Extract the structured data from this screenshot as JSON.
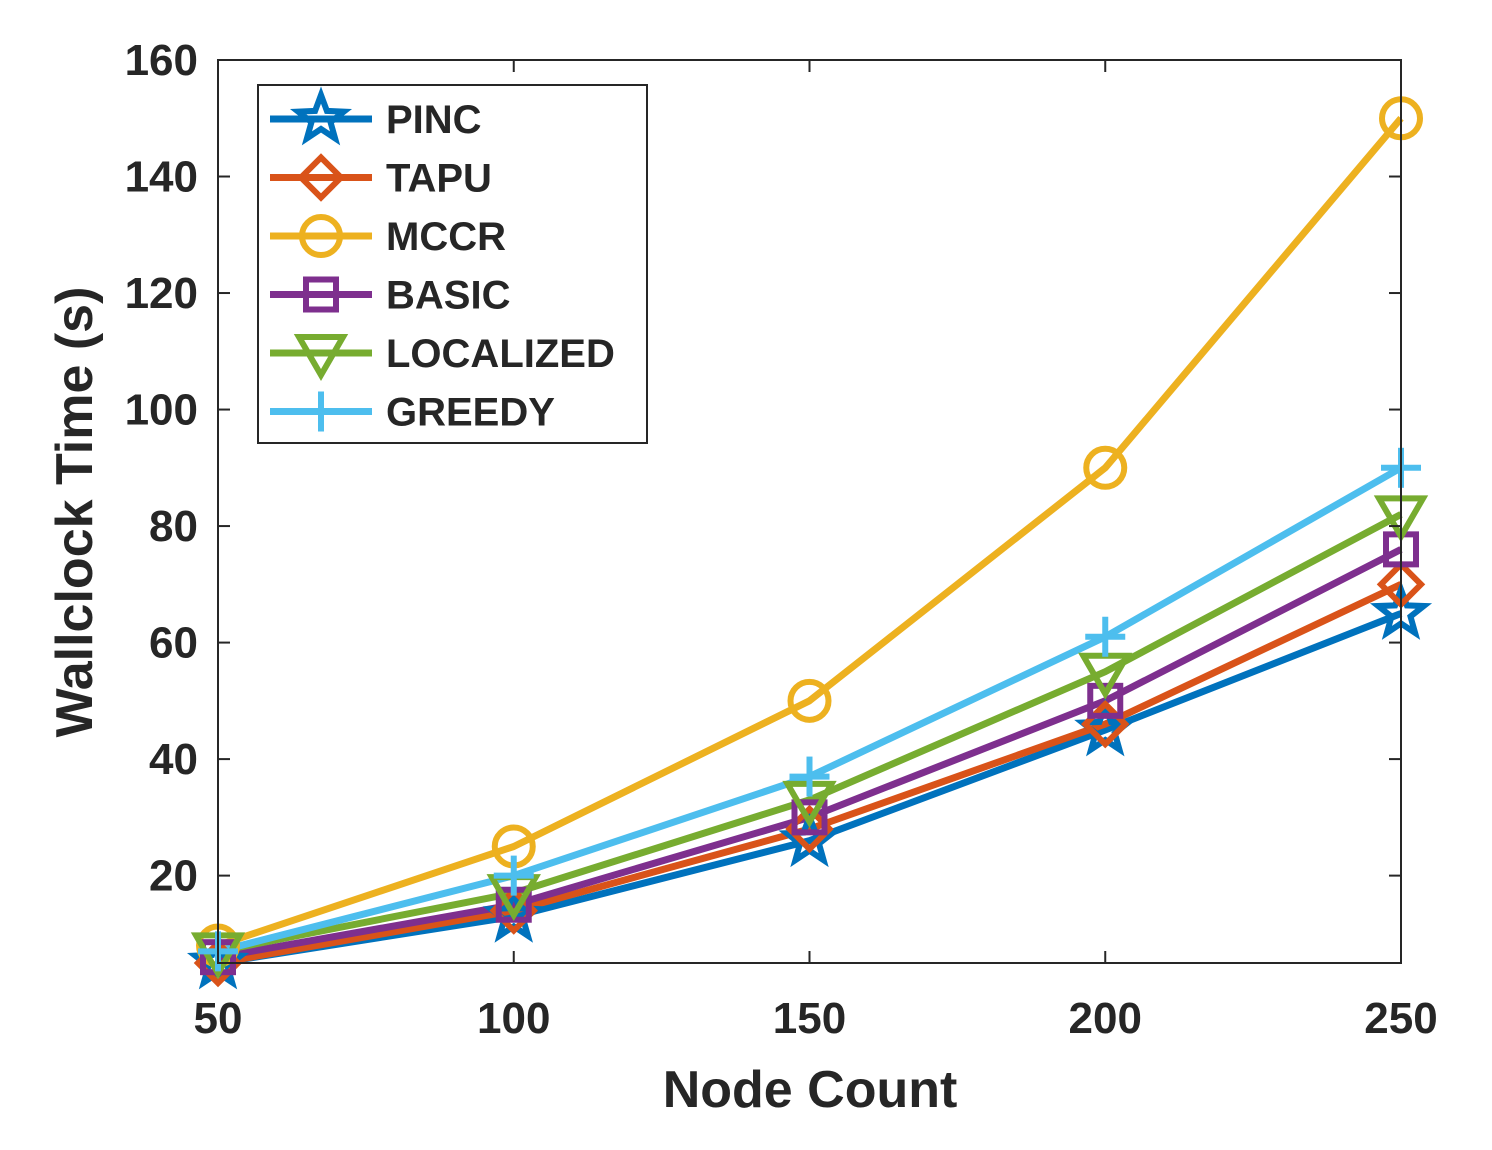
{
  "chart_data": {
    "type": "line",
    "title": "",
    "xlabel": "Node Count",
    "ylabel": "Wallclock Time (s)",
    "x": [
      50,
      100,
      150,
      200,
      250
    ],
    "xlim": [
      50,
      250
    ],
    "ylim": [
      5,
      160
    ],
    "xticks": [
      "50",
      "100",
      "150",
      "200",
      "250"
    ],
    "yticks": [
      "20",
      "40",
      "60",
      "80",
      "100",
      "120",
      "140",
      "160"
    ],
    "grid": false,
    "legend_position": "top-left",
    "series": [
      {
        "name": "PINC",
        "values": [
          5,
          13,
          26,
          45,
          65
        ],
        "color": "#0072BD",
        "marker": "star"
      },
      {
        "name": "TAPU",
        "values": [
          5,
          14,
          28,
          46,
          70
        ],
        "color": "#D95319",
        "marker": "diamond"
      },
      {
        "name": "MCCR",
        "values": [
          8,
          25,
          50,
          90,
          150
        ],
        "color": "#EDB120",
        "marker": "circle"
      },
      {
        "name": "BASIC",
        "values": [
          6,
          15,
          30,
          50,
          76
        ],
        "color": "#7E2F8E",
        "marker": "square"
      },
      {
        "name": "LOCALIZED",
        "values": [
          7,
          17,
          33,
          55,
          82
        ],
        "color": "#77AC30",
        "marker": "triangle-down"
      },
      {
        "name": "GREEDY",
        "values": [
          7,
          20,
          37,
          61,
          90
        ],
        "color": "#4DBEEE",
        "marker": "plus"
      }
    ]
  }
}
